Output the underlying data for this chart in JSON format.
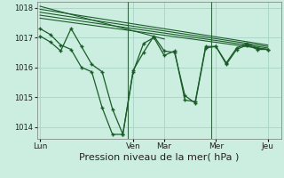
{
  "background_color": "#cceee0",
  "grid_color": "#aad8c8",
  "line_color": "#1a5c28",
  "xlabel": "Pression niveau de la mer( hPa )",
  "xlabel_fontsize": 8,
  "ylim": [
    1013.6,
    1018.2
  ],
  "yticks": [
    1014,
    1015,
    1016,
    1017,
    1018
  ],
  "xtick_labels": [
    "Lun",
    "Ven",
    "Mar",
    "Mer",
    "Jeu"
  ],
  "xtick_positions": [
    0,
    9,
    12,
    17,
    22
  ],
  "xlim": [
    -0.3,
    23.3
  ],
  "series1_x": [
    0,
    1,
    2,
    3,
    4,
    5,
    6,
    7,
    8,
    9,
    10,
    11,
    12,
    13,
    14,
    15,
    16,
    17,
    18,
    19,
    20,
    21,
    22
  ],
  "series1_y": [
    1017.3,
    1017.1,
    1016.75,
    1016.6,
    1016.0,
    1015.85,
    1014.65,
    1013.75,
    1013.75,
    1015.9,
    1016.5,
    1017.05,
    1016.55,
    1016.5,
    1015.05,
    1014.8,
    1016.65,
    1016.7,
    1016.1,
    1016.6,
    1016.75,
    1016.6,
    1016.6
  ],
  "series2_x": [
    0,
    1,
    2,
    3,
    4,
    5,
    6,
    7,
    8,
    9,
    10,
    11,
    12,
    13,
    14,
    15,
    16,
    17,
    18,
    19,
    20,
    21,
    22
  ],
  "series2_y": [
    1017.05,
    1016.85,
    1016.55,
    1017.3,
    1016.7,
    1016.1,
    1015.85,
    1014.6,
    1013.75,
    1015.85,
    1016.8,
    1017.0,
    1016.4,
    1016.55,
    1014.9,
    1014.85,
    1016.7,
    1016.7,
    1016.15,
    1016.65,
    1016.8,
    1016.65,
    1016.6
  ],
  "trend1_x": [
    0,
    22
  ],
  "trend1_y": [
    1017.65,
    1016.6
  ],
  "trend2_x": [
    0,
    22
  ],
  "trend2_y": [
    1017.75,
    1016.65
  ],
  "trend3_x": [
    0,
    22
  ],
  "trend3_y": [
    1017.85,
    1016.7
  ],
  "trend4_x": [
    0,
    22
  ],
  "trend4_y": [
    1017.95,
    1016.75
  ],
  "trend5_x": [
    0,
    12
  ],
  "trend5_y": [
    1018.05,
    1016.95
  ],
  "vline_x": [
    8.5,
    16.5
  ],
  "vline_color": "#336644"
}
